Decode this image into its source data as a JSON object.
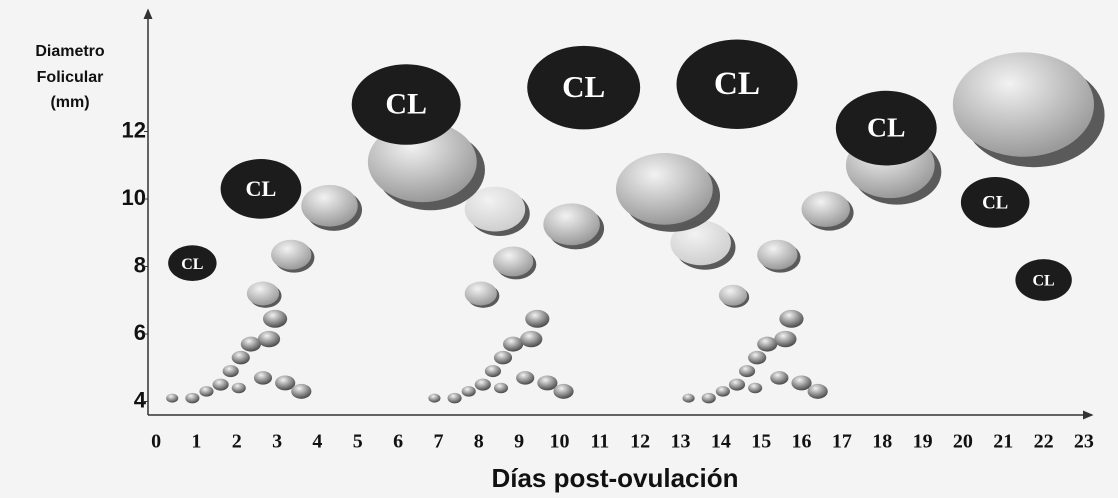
{
  "chart_data": {
    "type": "bubble",
    "y_label": [
      "Diametro",
      "Folicular",
      "(mm)"
    ],
    "x_label": "Días post-ovulación",
    "xlim": [
      -0.2,
      23.2
    ],
    "ylim": [
      3.6,
      15.6
    ],
    "xticks": [
      0,
      1,
      2,
      3,
      4,
      5,
      6,
      7,
      8,
      9,
      10,
      11,
      12,
      13,
      14,
      15,
      16,
      17,
      18,
      19,
      20,
      21,
      22,
      23
    ],
    "yticks": [
      4,
      6,
      8,
      10,
      12
    ],
    "series": [
      {
        "color": "#4a4a4a",
        "x": [
          0.4,
          0.9,
          1.25,
          1.6,
          1.85,
          2.1,
          2.35,
          2.05,
          2.65,
          2.8,
          2.95,
          3.2,
          3.6,
          6.9,
          7.4,
          7.75,
          8.1,
          8.35,
          8.6,
          8.85,
          8.55,
          9.15,
          9.3,
          9.45,
          9.7,
          10.1,
          13.2,
          13.7,
          14.05,
          14.4,
          14.65,
          14.9,
          15.15,
          14.85,
          15.45,
          15.6,
          15.75,
          16.0,
          16.4
        ],
        "values": [
          4.1,
          4.1,
          4.3,
          4.5,
          4.9,
          5.3,
          5.7,
          4.4,
          4.7,
          5.85,
          6.45,
          4.55,
          4.3,
          4.1,
          4.1,
          4.3,
          4.5,
          4.9,
          5.3,
          5.7,
          4.4,
          4.7,
          5.85,
          6.45,
          4.55,
          4.3,
          4.1,
          4.1,
          4.3,
          4.5,
          4.9,
          5.3,
          5.7,
          4.4,
          4.7,
          5.85,
          6.45,
          4.55,
          4.3
        ],
        "sizes": [
          0.3,
          0.35,
          0.35,
          0.4,
          0.4,
          0.45,
          0.5,
          0.35,
          0.45,
          0.55,
          0.6,
          0.5,
          0.5,
          0.3,
          0.35,
          0.35,
          0.4,
          0.4,
          0.45,
          0.5,
          0.35,
          0.45,
          0.55,
          0.6,
          0.5,
          0.5,
          0.3,
          0.35,
          0.35,
          0.4,
          0.4,
          0.45,
          0.5,
          0.35,
          0.45,
          0.55,
          0.6,
          0.5,
          0.5
        ]
      },
      {
        "color": "#cfcfcf",
        "x": [
          8.4,
          13.5
        ],
        "values": [
          9.7,
          8.7
        ],
        "sizes": [
          1.5,
          1.5
        ]
      },
      {
        "color": "#9a9a9a",
        "x": [
          2.65,
          3.35,
          4.3,
          6.6,
          8.05,
          8.85,
          10.3,
          12.6,
          14.3,
          15.4,
          16.6,
          18.2,
          21.5
        ],
        "values": [
          7.2,
          8.35,
          9.8,
          11.1,
          7.2,
          8.15,
          9.25,
          10.3,
          7.15,
          8.35,
          9.7,
          11.0,
          12.8
        ],
        "sizes": [
          0.8,
          1.0,
          1.4,
          2.7,
          0.8,
          1.0,
          1.4,
          2.4,
          0.7,
          1.0,
          1.2,
          2.2,
          3.5
        ]
      },
      {
        "color": "#1c1c1c",
        "point_label": "CL",
        "x": [
          0.9,
          2.6,
          6.2,
          10.6,
          14.4,
          18.1,
          20.8,
          22.0
        ],
        "values": [
          8.1,
          10.3,
          12.8,
          13.3,
          13.4,
          12.1,
          9.9,
          7.6
        ],
        "sizes": [
          1.2,
          2.0,
          2.7,
          2.8,
          3.0,
          2.5,
          1.7,
          1.4
        ]
      }
    ]
  }
}
